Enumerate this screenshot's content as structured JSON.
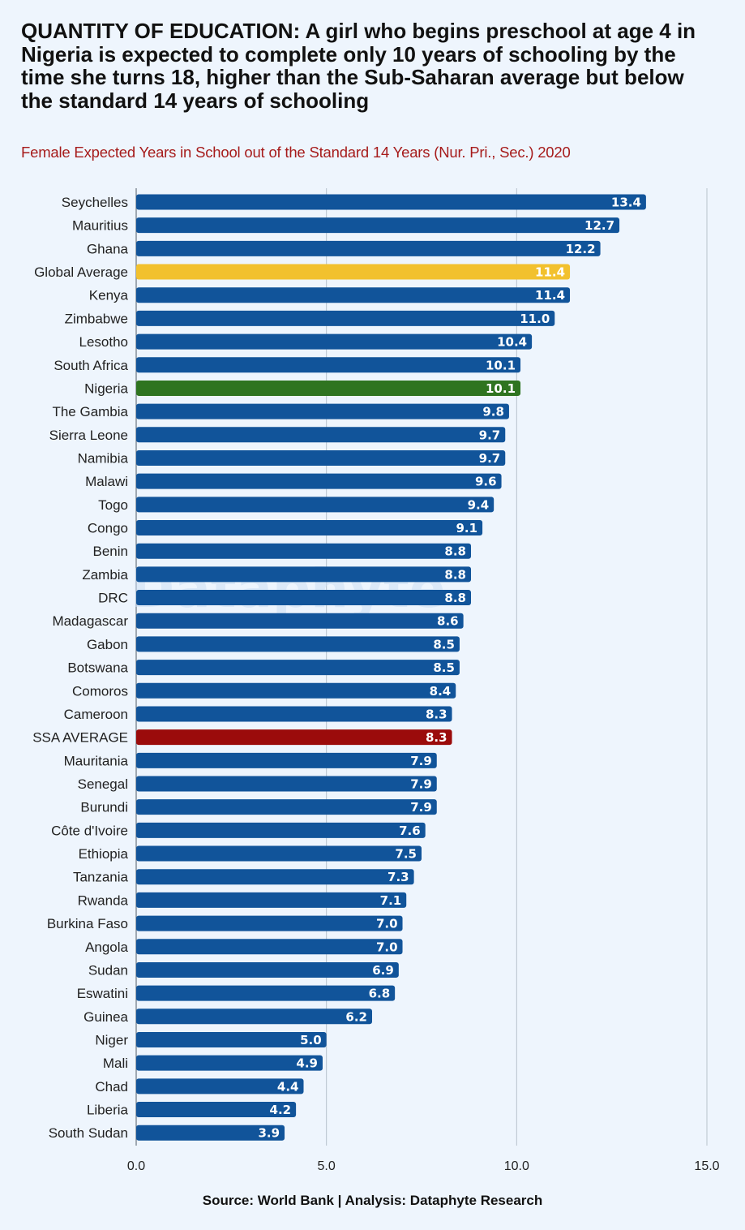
{
  "header": {
    "title": "QUANTITY OF EDUCATION: A girl who begins preschool at age 4 in Nigeria is expected to complete only 10 years of schooling by the time she turns 18, higher than the Sub-Saharan average but below the standard 14 years of schooling",
    "subtitle": "Female Expected Years in School out of the Standard 14 Years (Nur. Pri., Sec.) 2020"
  },
  "footer": {
    "source": "Source: World Bank | Analysis: Dataphyte Research"
  },
  "watermark": "Dataphyte",
  "colors": {
    "default_bar": "#11549a",
    "global_average": "#f2c12e",
    "nigeria": "#2f7420",
    "ssa_average": "#9b0b0b",
    "gridline": "#b8c2cc"
  },
  "chart_data": {
    "type": "bar",
    "orientation": "horizontal",
    "title": "QUANTITY OF EDUCATION: A girl who begins preschool at age 4 in Nigeria is expected to complete only 10 years of schooling by the time she turns 18, higher than the Sub-Saharan average but below the standard 14 years of schooling",
    "subtitle": "Female Expected Years in School out of the Standard 14 Years (Nur. Pri., Sec.) 2020",
    "xlabel": "",
    "ylabel": "",
    "xlim": [
      0,
      15
    ],
    "x_ticks": [
      0,
      5,
      10,
      15
    ],
    "x_tick_labels": [
      "0.0",
      "5.0",
      "10.0",
      "15.0"
    ],
    "grid": "vertical",
    "highlights": {
      "Global Average": "global_average",
      "Nigeria": "nigeria",
      "SSA AVERAGE": "ssa_average"
    },
    "categories": [
      "Seychelles",
      "Mauritius",
      "Ghana",
      "Global Average",
      "Kenya",
      "Zimbabwe",
      "Lesotho",
      "South Africa",
      "Nigeria",
      "The Gambia",
      "Sierra Leone",
      "Namibia",
      "Malawi",
      "Togo",
      "Congo",
      "Benin",
      "Zambia",
      "DRC",
      "Madagascar",
      "Gabon",
      "Botswana",
      "Comoros",
      "Cameroon",
      "SSA AVERAGE",
      "Mauritania",
      "Senegal",
      "Burundi",
      "Côte d'Ivoire",
      "Ethiopia",
      "Tanzania",
      "Rwanda",
      "Burkina Faso",
      "Angola",
      "Sudan",
      "Eswatini",
      "Guinea",
      "Niger",
      "Mali",
      "Chad",
      "Liberia",
      "South Sudan"
    ],
    "values": [
      13.4,
      12.7,
      12.2,
      11.4,
      11.4,
      11.0,
      10.4,
      10.1,
      10.1,
      9.8,
      9.7,
      9.7,
      9.6,
      9.4,
      9.1,
      8.8,
      8.8,
      8.8,
      8.6,
      8.5,
      8.5,
      8.4,
      8.3,
      8.3,
      7.9,
      7.9,
      7.9,
      7.6,
      7.5,
      7.3,
      7.1,
      7.0,
      7.0,
      6.9,
      6.8,
      6.2,
      5.0,
      4.9,
      4.4,
      4.2,
      3.9
    ],
    "value_labels": [
      "13.4",
      "12.7",
      "12.2",
      "11.4",
      "11.4",
      "11.0",
      "10.4",
      "10.1",
      "10.1",
      "9.8",
      "9.7",
      "9.7",
      "9.6",
      "9.4",
      "9.1",
      "8.8",
      "8.8",
      "8.8",
      "8.6",
      "8.5",
      "8.5",
      "8.4",
      "8.3",
      "8.3",
      "7.9",
      "7.9",
      "7.9",
      "7.6",
      "7.5",
      "7.3",
      "7.1",
      "7.0",
      "7.0",
      "6.9",
      "6.8",
      "6.2",
      "5.0",
      "4.9",
      "4.4",
      "4.2",
      "3.9"
    ]
  }
}
